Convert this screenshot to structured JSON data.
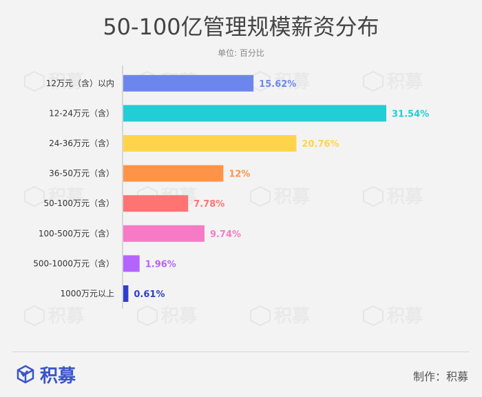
{
  "header": {
    "title": "50-100亿管理规模薪资分布",
    "unit": "单位: 百分比"
  },
  "chart_data": {
    "type": "bar",
    "orientation": "horizontal",
    "categories": [
      "12万元（含）以内",
      "12-24万元（含）",
      "24-36万元（含）",
      "36-50万元（含）",
      "50-100万元（含）",
      "100-500万元（含）",
      "500-1000万元（含）",
      "1000万元以上"
    ],
    "values": [
      15.62,
      31.54,
      20.76,
      12,
      7.78,
      9.74,
      1.96,
      0.61
    ],
    "value_labels": [
      "15.62%",
      "31.54%",
      "20.76%",
      "12%",
      "7.78%",
      "9.74%",
      "1.96%",
      "0.61%"
    ],
    "colors": [
      "#6d86ee",
      "#22cdd6",
      "#ffd44a",
      "#ff9448",
      "#ff7373",
      "#f77ac6",
      "#b463ff",
      "#2f3fc9"
    ],
    "xlim": [
      0,
      31.54
    ],
    "grid": false,
    "legend": "none"
  },
  "watermark": {
    "text": "积募"
  },
  "footer": {
    "brand": "积募",
    "credit": "制作：积募"
  }
}
